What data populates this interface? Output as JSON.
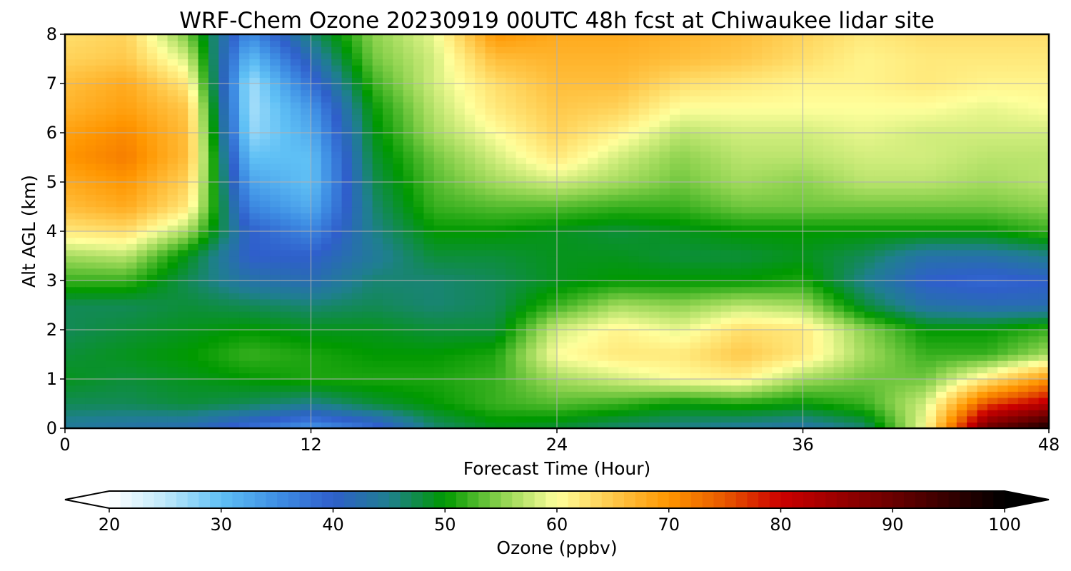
{
  "chart_data": {
    "type": "heatmap",
    "title": "WRF-Chem Ozone  20230919 00UTC 48h fcst at Chiwaukee lidar site",
    "xlabel": "Forecast Time (Hour)",
    "ylabel": "Alt AGL (km)",
    "xlim": [
      0,
      48
    ],
    "ylim": [
      0,
      8
    ],
    "xticks": [
      0,
      12,
      24,
      36,
      48
    ],
    "yticks": [
      0,
      1,
      2,
      3,
      4,
      5,
      6,
      7,
      8
    ],
    "grid": true,
    "x": [
      0,
      3,
      6,
      9,
      12,
      15,
      18,
      21,
      24,
      27,
      30,
      33,
      36,
      39,
      42,
      45,
      48
    ],
    "y": [
      0,
      0.5,
      1,
      1.5,
      2,
      2.5,
      3,
      3.5,
      4,
      4.5,
      5,
      5.5,
      6,
      6.5,
      7,
      7.5,
      8
    ],
    "z": [
      [
        44,
        43,
        42,
        38,
        34,
        38,
        46,
        49,
        48,
        46,
        45,
        44,
        43,
        46,
        60,
        90,
        98
      ],
      [
        47,
        47,
        48,
        47,
        45,
        48,
        50,
        52,
        53,
        52,
        50,
        51,
        50,
        52,
        58,
        76,
        82
      ],
      [
        49,
        48,
        49,
        50,
        51,
        51,
        51,
        52,
        56,
        58,
        60,
        61,
        56,
        54,
        54,
        62,
        70
      ],
      [
        48,
        49,
        50,
        52,
        51,
        50,
        50,
        51,
        60,
        62,
        62,
        65,
        62,
        56,
        52,
        52,
        56
      ],
      [
        47,
        48,
        49,
        50,
        49,
        49,
        48,
        48,
        58,
        61,
        59,
        63,
        62,
        55,
        50,
        50,
        52
      ],
      [
        47,
        47,
        48,
        47,
        46,
        47,
        46,
        47,
        52,
        56,
        55,
        57,
        56,
        48,
        43,
        42,
        42
      ],
      [
        52,
        52,
        47,
        43,
        42,
        46,
        46,
        47,
        49,
        50,
        50,
        50,
        51,
        45,
        40,
        39,
        40
      ],
      [
        56,
        57,
        49,
        40,
        40,
        44,
        48,
        48,
        49,
        49,
        48,
        48,
        49,
        47,
        43,
        43,
        45
      ],
      [
        62,
        63,
        56,
        40,
        36,
        45,
        50,
        50,
        49,
        48,
        49,
        50,
        50,
        50,
        50,
        50,
        52
      ],
      [
        66,
        68,
        62,
        36,
        32,
        46,
        52,
        53,
        53,
        52,
        52,
        54,
        54,
        54,
        54,
        54,
        55
      ],
      [
        68,
        70,
        64,
        33,
        30,
        47,
        53,
        56,
        58,
        56,
        54,
        56,
        55,
        57,
        57,
        56,
        57
      ],
      [
        70,
        72,
        66,
        30,
        30,
        48,
        54,
        58,
        62,
        58,
        55,
        57,
        57,
        58,
        58,
        57,
        57
      ],
      [
        69,
        71,
        66,
        27,
        32,
        49,
        56,
        60,
        64,
        61,
        57,
        58,
        58,
        59,
        58,
        58,
        58
      ],
      [
        67,
        69,
        65,
        26,
        34,
        50,
        57,
        62,
        65,
        64,
        60,
        60,
        60,
        60,
        60,
        59,
        60
      ],
      [
        66,
        68,
        62,
        26,
        38,
        52,
        58,
        63,
        66,
        66,
        63,
        62,
        61,
        61,
        62,
        61,
        61
      ],
      [
        64,
        65,
        58,
        30,
        42,
        54,
        58,
        66,
        67,
        67,
        66,
        65,
        63,
        61,
        62,
        62,
        62
      ],
      [
        63,
        64,
        54,
        35,
        46,
        55,
        59,
        70,
        68,
        68,
        67,
        66,
        64,
        62,
        63,
        63,
        63
      ]
    ],
    "colorbar": {
      "label": "Ozone  (ppbv)",
      "ticks": [
        20,
        30,
        40,
        50,
        60,
        70,
        80,
        90,
        100
      ],
      "vmin": 20,
      "vmax": 100,
      "extend": "both",
      "stops": [
        {
          "v": 20,
          "c": "#ffffff"
        },
        {
          "v": 25,
          "c": "#bfe9fb"
        },
        {
          "v": 30,
          "c": "#5fc0f5"
        },
        {
          "v": 35,
          "c": "#3f8fe4"
        },
        {
          "v": 40,
          "c": "#2f5fcb"
        },
        {
          "v": 45,
          "c": "#1f7f8f"
        },
        {
          "v": 50,
          "c": "#009900"
        },
        {
          "v": 55,
          "c": "#8cd24e"
        },
        {
          "v": 60,
          "c": "#ffff9c"
        },
        {
          "v": 65,
          "c": "#ffc84a"
        },
        {
          "v": 70,
          "c": "#ff9600"
        },
        {
          "v": 75,
          "c": "#e85800"
        },
        {
          "v": 80,
          "c": "#cc0000"
        },
        {
          "v": 90,
          "c": "#6a0000"
        },
        {
          "v": 100,
          "c": "#000000"
        }
      ]
    }
  }
}
